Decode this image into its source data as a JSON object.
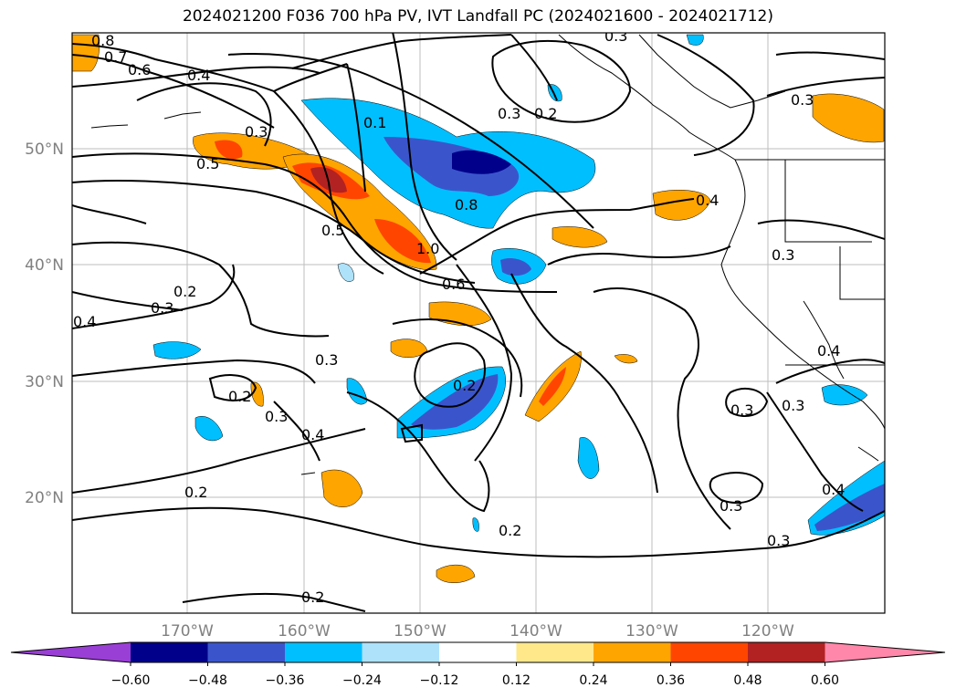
{
  "title": "2024021200 F036 700 hPa PV, IVT Landfall PC (2024021600 - 2024021712)",
  "longitude_ticks": [
    "170°W",
    "160°W",
    "150°W",
    "140°W",
    "130°W",
    "120°W"
  ],
  "latitude_ticks": [
    "50°N",
    "40°N",
    "30°N",
    "20°N"
  ],
  "colorbar": {
    "ticks": [
      "−0.60",
      "−0.48",
      "−0.36",
      "−0.24",
      "−0.12",
      "0.12",
      "0.24",
      "0.36",
      "0.48",
      "0.60"
    ],
    "colors": [
      "#9a3fd6",
      "#00008b",
      "#3a55cc",
      "#00bfff",
      "#aee2fb",
      "#ffffff",
      "#ffe88a",
      "#ffa500",
      "#ff4500",
      "#b22222",
      "#ff88aa"
    ]
  },
  "contour_labels": [
    "0.8",
    "0.7",
    "0.6",
    "0.4",
    "0.3",
    "0.5",
    "0.1",
    "0.8",
    "0.3",
    "0.2",
    "0.3",
    "0.5",
    "1.0",
    "0.6",
    "0.4",
    "0.2",
    "0.3",
    "0.4",
    "0.3",
    "0.3",
    "0.2",
    "0.2",
    "0.3",
    "0.4",
    "0.2",
    "0.2",
    "0.3",
    "0.3",
    "0.4",
    "0.3",
    "0.3",
    "0.4",
    "0.3",
    "0.2"
  ]
}
